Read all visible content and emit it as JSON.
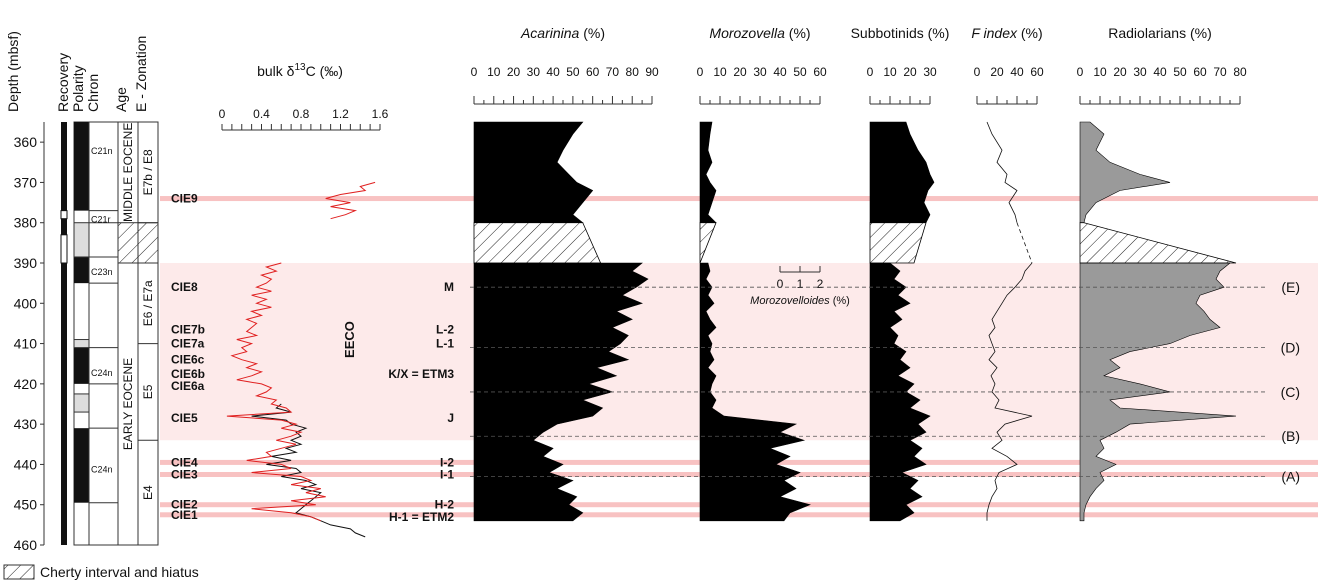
{
  "chart_data": {
    "type": "area",
    "depth_axis": {
      "label": "Depth (mbsf)",
      "range": [
        355,
        460
      ],
      "ticks": [
        360,
        370,
        380,
        390,
        400,
        410,
        420,
        430,
        440,
        450,
        460
      ]
    },
    "strat_columns": [
      "Recovery",
      "Polarity",
      "Chron",
      "Age",
      "E - Zonation"
    ],
    "chrons": [
      {
        "label": "C21n",
        "depth": 362
      },
      {
        "label": "C21r",
        "depth": 379
      },
      {
        "label": "C23n",
        "depth": 392
      },
      {
        "label": "C24n",
        "depth": 417
      },
      {
        "label": "C24n",
        "depth": 441
      }
    ],
    "polarity_black": [
      [
        355,
        377
      ],
      [
        388.5,
        395
      ],
      [
        411,
        420
      ],
      [
        431,
        449.5
      ]
    ],
    "polarity_gray": [
      [
        380,
        388.5
      ],
      [
        409,
        411
      ],
      [
        422.5,
        427
      ]
    ],
    "ages": [
      {
        "label": "MIDDLE EOCENE",
        "range": [
          355,
          380
        ]
      },
      {
        "label": "EARLY EOCENE",
        "range": [
          390,
          460
        ]
      }
    ],
    "zones": [
      {
        "label": "E7b / E8",
        "range": [
          355,
          380
        ]
      },
      {
        "label": "E6 / E7a",
        "range": [
          390,
          410
        ]
      },
      {
        "label": "E5",
        "range": [
          410,
          434
        ]
      },
      {
        "label": "E4",
        "range": [
          434,
          460
        ]
      }
    ],
    "chert_hiatus": [
      380,
      390
    ],
    "legend_text": "Cherty interval and hiatus",
    "d13c": {
      "title_prefix": "bulk δ",
      "title_sup": "13",
      "title_suffix": "C (‰)",
      "range": [
        0,
        1.6
      ],
      "ticks": [
        0,
        0.4,
        0.8,
        1.2,
        1.6
      ],
      "tick_labels": [
        "0",
        "0.4",
        "0.8",
        "1.2",
        "1.6"
      ],
      "red_depth": [
        370,
        371,
        372,
        373,
        374,
        375,
        376,
        377,
        378,
        379,
        390,
        391,
        392,
        393,
        394,
        395,
        396,
        397,
        398,
        399,
        400,
        401,
        402,
        403,
        404,
        405,
        406,
        407,
        408,
        409,
        410,
        411,
        412,
        413,
        414,
        415,
        416,
        417,
        418,
        419,
        420,
        421,
        422,
        423,
        424,
        425,
        426,
        427,
        428,
        429,
        430,
        431,
        432,
        433,
        434,
        435,
        436,
        437,
        438,
        439,
        440,
        441,
        442,
        443,
        444,
        445,
        446,
        447,
        448,
        449,
        450,
        451,
        452,
        453,
        454
      ],
      "red_value": [
        1.55,
        1.4,
        1.45,
        1.2,
        1.05,
        1.3,
        1.1,
        1.35,
        1.25,
        1.1,
        0.6,
        0.45,
        0.55,
        0.4,
        0.5,
        0.45,
        0.35,
        0.5,
        0.3,
        0.45,
        0.35,
        0.5,
        0.3,
        0.4,
        0.25,
        0.35,
        0.3,
        0.25,
        0.35,
        0.15,
        0.3,
        0.2,
        0.25,
        0.1,
        0.2,
        0.35,
        0.25,
        0.4,
        0.3,
        0.15,
        0.4,
        0.5,
        0.45,
        0.35,
        0.55,
        0.5,
        0.65,
        0.7,
        0.05,
        0.6,
        0.75,
        0.6,
        0.8,
        0.7,
        0.55,
        0.75,
        0.6,
        0.45,
        0.5,
        0.25,
        0.6,
        0.7,
        0.3,
        0.8,
        0.9,
        0.7,
        1.0,
        0.85,
        1.05,
        0.7,
        0.95,
        0.3,
        0.7,
        0.9,
        1.0
      ],
      "black_depth": [
        425,
        426,
        427,
        428,
        429,
        430,
        431,
        432,
        433,
        434,
        435,
        436,
        437,
        438,
        439,
        440,
        441,
        442,
        443,
        444,
        445,
        446,
        447,
        448,
        449,
        450,
        451,
        452,
        453,
        454,
        455,
        456,
        457,
        458
      ],
      "black_value": [
        0.6,
        0.55,
        0.7,
        0.3,
        0.65,
        0.7,
        0.85,
        0.75,
        0.8,
        0.7,
        0.8,
        0.65,
        0.75,
        0.5,
        0.7,
        0.45,
        0.75,
        0.8,
        0.6,
        0.85,
        0.95,
        0.8,
        1.0,
        0.95,
        0.9,
        0.85,
        0.8,
        0.75,
        0.9,
        1.0,
        1.1,
        1.3,
        1.35,
        1.45
      ]
    },
    "cie_events": [
      {
        "label": "CIE9",
        "depth": 374
      },
      {
        "label": "CIE8",
        "depth": 396
      },
      {
        "label": "CIE7b",
        "depth": 406.5
      },
      {
        "label": "CIE7a",
        "depth": 410
      },
      {
        "label": "CIE6c",
        "depth": 414
      },
      {
        "label": "CIE6b",
        "depth": 417.5
      },
      {
        "label": "CIE6a",
        "depth": 420.5
      },
      {
        "label": "CIE5",
        "depth": 428.5
      },
      {
        "label": "CIE4",
        "depth": 439.5
      },
      {
        "label": "CIE3",
        "depth": 442.5
      },
      {
        "label": "CIE2",
        "depth": 450
      },
      {
        "label": "CIE1",
        "depth": 452.5
      }
    ],
    "hyperthermals": [
      {
        "label": "M",
        "depth": 396
      },
      {
        "label": "L-2",
        "depth": 406.5
      },
      {
        "label": "L-1",
        "depth": 410
      },
      {
        "label": "K/X = ETM3",
        "depth": 417.5
      },
      {
        "label": "J",
        "depth": 428.5
      },
      {
        "label": "I-2",
        "depth": 439.5
      },
      {
        "label": "I-1",
        "depth": 442.5
      },
      {
        "label": "H-2",
        "depth": 450
      },
      {
        "label": "H-1 = ETM2",
        "depth": 453
      }
    ],
    "eeco": {
      "label": "EECO",
      "range": [
        390,
        428
      ]
    },
    "dashed_boundaries": [
      {
        "label": "(E)",
        "depth": 396
      },
      {
        "label": "(D)",
        "depth": 411
      },
      {
        "label": "(C)",
        "depth": 422
      },
      {
        "label": "(B)",
        "depth": 433
      },
      {
        "label": "(A)",
        "depth": 443
      }
    ],
    "panels": [
      {
        "name": "acarinina",
        "title": "Acarinina",
        "unit": " (%)",
        "italic": true,
        "range": [
          0,
          90
        ],
        "ticks": [
          0,
          10,
          20,
          30,
          40,
          50,
          60,
          70,
          80,
          90
        ],
        "depth": [
          355,
          358,
          362,
          365,
          368,
          370,
          372,
          375,
          378,
          380,
          390,
          392,
          394,
          396,
          398,
          400,
          402,
          404,
          406,
          408,
          410,
          412,
          414,
          416,
          418,
          420,
          422,
          424,
          426,
          428,
          430,
          432,
          434,
          436,
          438,
          440,
          442,
          444,
          446,
          448,
          450,
          452,
          454
        ],
        "value": [
          55,
          50,
          45,
          42,
          48,
          52,
          60,
          55,
          50,
          55,
          85,
          80,
          88,
          82,
          75,
          85,
          72,
          80,
          70,
          78,
          74,
          68,
          78,
          62,
          72,
          58,
          70,
          55,
          65,
          60,
          42,
          35,
          30,
          40,
          35,
          45,
          38,
          50,
          42,
          52,
          48,
          55,
          50
        ],
        "hiatus_top": 55,
        "hiatus_bottom": 64
      },
      {
        "name": "morozovella",
        "title": "Morozovella",
        "unit": " (%)",
        "italic": true,
        "range": [
          0,
          60
        ],
        "ticks": [
          0,
          10,
          20,
          30,
          40,
          50,
          60
        ],
        "depth": [
          355,
          358,
          362,
          365,
          368,
          370,
          372,
          375,
          378,
          380,
          390,
          392,
          394,
          396,
          398,
          400,
          402,
          404,
          406,
          408,
          410,
          412,
          414,
          416,
          418,
          420,
          422,
          424,
          426,
          428,
          430,
          432,
          434,
          436,
          438,
          440,
          442,
          444,
          446,
          448,
          450,
          452,
          454
        ],
        "value": [
          6,
          5,
          4,
          6,
          3,
          5,
          8,
          6,
          4,
          8,
          4,
          5,
          3,
          6,
          4,
          7,
          3,
          5,
          8,
          4,
          6,
          5,
          7,
          4,
          8,
          6,
          5,
          8,
          6,
          12,
          48,
          40,
          52,
          35,
          45,
          38,
          50,
          42,
          48,
          40,
          55,
          45,
          42
        ],
        "hiatus_top": 8,
        "hiatus_bottom": 0
      },
      {
        "name": "subbotinids",
        "title": "Subbotinids",
        "unit": " (%)",
        "italic": false,
        "range": [
          0,
          30
        ],
        "ticks": [
          0,
          10,
          20,
          30
        ],
        "depth": [
          355,
          358,
          362,
          365,
          368,
          370,
          372,
          375,
          378,
          380,
          390,
          392,
          394,
          396,
          398,
          400,
          402,
          404,
          406,
          408,
          410,
          412,
          414,
          416,
          418,
          420,
          422,
          424,
          426,
          428,
          430,
          432,
          434,
          436,
          438,
          440,
          442,
          444,
          446,
          448,
          450,
          452,
          454
        ],
        "value": [
          18,
          20,
          24,
          28,
          30,
          32,
          29,
          27,
          30,
          28,
          10,
          15,
          12,
          18,
          14,
          20,
          12,
          16,
          10,
          14,
          12,
          18,
          15,
          20,
          14,
          22,
          18,
          25,
          20,
          30,
          24,
          28,
          20,
          26,
          22,
          28,
          16,
          24,
          20,
          26,
          18,
          22,
          15
        ],
        "hiatus_top": 28,
        "hiatus_bottom": 22
      },
      {
        "name": "findex",
        "title": "F index",
        "unit": " (%)",
        "italic": true,
        "range": [
          0,
          60
        ],
        "ticks": [
          0,
          20,
          40,
          60
        ],
        "depth": [
          355,
          358,
          362,
          365,
          368,
          370,
          372,
          375,
          378,
          380,
          390,
          392,
          394,
          396,
          398,
          400,
          402,
          404,
          406,
          408,
          410,
          412,
          414,
          416,
          418,
          420,
          422,
          424,
          426,
          428,
          430,
          432,
          434,
          436,
          438,
          440,
          442,
          444,
          446,
          448,
          450,
          452,
          454
        ],
        "value": [
          10,
          15,
          25,
          20,
          30,
          28,
          40,
          32,
          38,
          40,
          55,
          48,
          45,
          38,
          30,
          25,
          20,
          15,
          18,
          12,
          15,
          18,
          12,
          20,
          14,
          18,
          15,
          22,
          18,
          55,
          28,
          20,
          25,
          15,
          30,
          40,
          22,
          18,
          20,
          15,
          12,
          10,
          10
        ],
        "hiatus_line": true
      },
      {
        "name": "radiolarians",
        "title": "Radiolarians",
        "unit": " (%)",
        "italic": false,
        "range": [
          0,
          80
        ],
        "ticks": [
          0,
          10,
          20,
          30,
          40,
          50,
          60,
          70,
          80
        ],
        "depth": [
          355,
          358,
          362,
          365,
          368,
          370,
          372,
          375,
          378,
          380,
          390,
          392,
          394,
          396,
          398,
          400,
          402,
          404,
          406,
          408,
          410,
          412,
          414,
          416,
          418,
          420,
          422,
          424,
          426,
          428,
          430,
          432,
          434,
          436,
          438,
          440,
          442,
          444,
          446,
          448,
          450,
          452,
          454
        ],
        "value": [
          5,
          12,
          8,
          15,
          30,
          45,
          20,
          8,
          3,
          2,
          75,
          70,
          68,
          72,
          60,
          58,
          62,
          65,
          70,
          55,
          45,
          25,
          15,
          20,
          12,
          30,
          45,
          15,
          20,
          78,
          25,
          18,
          10,
          12,
          8,
          18,
          10,
          12,
          8,
          5,
          3,
          2,
          2
        ],
        "hiatus_top": 2,
        "hiatus_bottom": 78
      }
    ],
    "morozovelloides": {
      "title": "Morozovelloides",
      "unit": " (%)",
      "range": [
        0,
        2
      ],
      "ticks": [
        0,
        1,
        2
      ]
    }
  }
}
